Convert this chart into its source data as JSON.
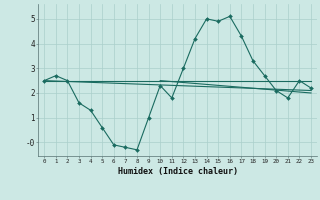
{
  "xlabel": "Humidex (Indice chaleur)",
  "bg_color": "#cce8e4",
  "grid_color": "#aacfcb",
  "line_color": "#1a6b60",
  "x_main": [
    0,
    1,
    2,
    3,
    4,
    5,
    6,
    7,
    8,
    9,
    10,
    11,
    12,
    13,
    14,
    15,
    16,
    17,
    18,
    19,
    20,
    21,
    22,
    23
  ],
  "y_main": [
    2.5,
    2.7,
    2.5,
    1.6,
    1.3,
    0.6,
    -0.1,
    -0.2,
    -0.3,
    1.0,
    2.3,
    1.8,
    3.0,
    4.2,
    5.0,
    4.9,
    5.1,
    4.3,
    3.3,
    2.7,
    2.1,
    1.8,
    2.5,
    2.2
  ],
  "ref_lines": [
    {
      "x": [
        0,
        23
      ],
      "y": [
        2.5,
        2.5
      ]
    },
    {
      "x": [
        0,
        23
      ],
      "y": [
        2.5,
        2.1
      ]
    },
    {
      "x": [
        10,
        23
      ],
      "y": [
        2.5,
        2.0
      ]
    }
  ],
  "ylim": [
    -0.55,
    5.6
  ],
  "xlim": [
    -0.5,
    23.5
  ],
  "yticks": [
    5,
    4,
    3,
    2,
    1,
    0
  ],
  "ytick_labels": [
    "5",
    "4",
    "3",
    "2",
    "1",
    "-0"
  ],
  "xticks": [
    0,
    1,
    2,
    3,
    4,
    5,
    6,
    7,
    8,
    9,
    10,
    11,
    12,
    13,
    14,
    15,
    16,
    17,
    18,
    19,
    20,
    21,
    22,
    23
  ]
}
